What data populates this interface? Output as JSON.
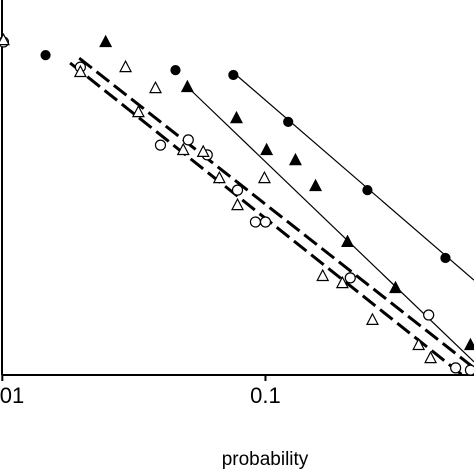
{
  "chart_data": {
    "type": "scatter",
    "xlabel": "probability",
    "xscale": "log",
    "xlim": [
      0.0098,
      0.62
    ],
    "ylim": [
      0,
      100
    ],
    "xticks": [
      {
        "value": 0.01,
        "label": "01"
      },
      0.1
    ],
    "series": [
      {
        "marker": "filled-circle",
        "color": "#000000",
        "x": [
          0.0146,
          0.0455,
          0.0755,
          0.122,
          0.244,
          0.483
        ],
        "values": [
          85.3,
          81.3,
          80,
          67.5,
          49.3,
          31.2
        ]
      },
      {
        "marker": "filled-triangle",
        "color": "#000000",
        "x": [
          0.0247,
          0.0505,
          0.0776,
          0.101,
          0.13,
          0.155,
          0.205,
          0.312,
          0.601
        ],
        "values": [
          88.8,
          76.8,
          68.5,
          60,
          57.3,
          50.4,
          35.5,
          23.2,
          8
        ]
      },
      {
        "marker": "open-circle",
        "color": "#000000",
        "x": [
          0.0101,
          0.0198,
          0.0399,
          0.0509,
          0.0601,
          0.0783,
          0.0916,
          0.1,
          0.21,
          0.417,
          0.528,
          0.601
        ],
        "values": [
          88.8,
          82.1,
          61.3,
          62.7,
          58.7,
          49.3,
          40.8,
          40.8,
          25.9,
          16,
          1.9,
          1.3
        ]
      },
      {
        "marker": "open-triangle",
        "color": "#000000",
        "x": [
          0.0101,
          0.0198,
          0.0294,
          0.0382,
          0.0329,
          0.0487,
          0.058,
          0.0668,
          0.0783,
          0.0991,
          0.165,
          0.196,
          0.255,
          0.382,
          0.424
        ],
        "values": [
          89.3,
          80.8,
          82.1,
          76.5,
          70.1,
          60,
          59.5,
          52.5,
          45.3,
          52.5,
          26.4,
          24.5,
          14.7,
          8,
          4.5
        ]
      }
    ],
    "lines": [
      {
        "style": "solid",
        "x": [
          0.0751,
          0.62
        ],
        "values": [
          80.8,
          25.3
        ]
      },
      {
        "style": "solid",
        "x": [
          0.0497,
          0.62
        ],
        "values": [
          77.3,
          3.5
        ]
      },
      {
        "style": "dashed",
        "x": [
          0.0196,
          0.62
        ],
        "values": [
          84.5,
          1.9
        ]
      },
      {
        "style": "dashed",
        "x": [
          0.0181,
          0.56
        ],
        "values": [
          83.2,
          0
        ]
      }
    ]
  }
}
